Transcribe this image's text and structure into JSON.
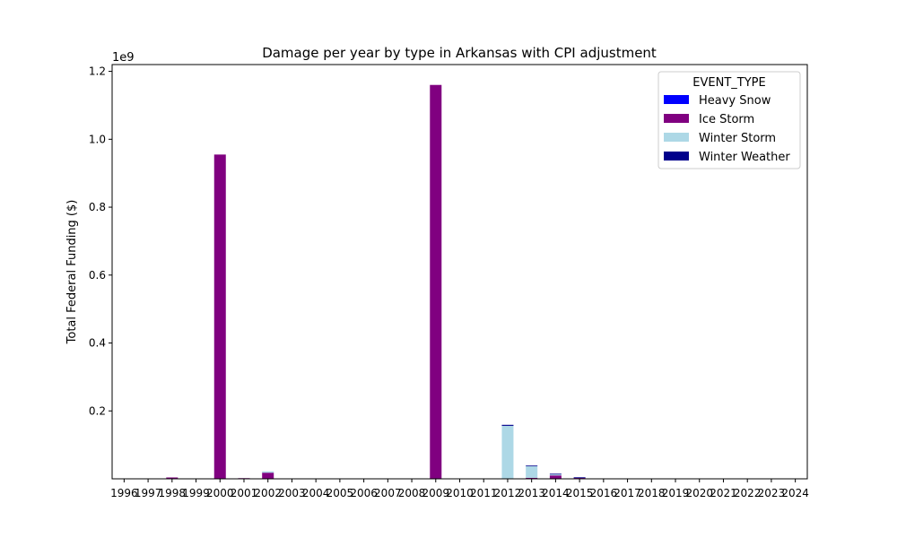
{
  "chart_data": {
    "type": "bar",
    "stacked": true,
    "title": "Damage per year by type in Arkansas with CPI adjustment",
    "xlabel": "",
    "ylabel": "Total Federal Funding ($)",
    "y_scale_label": "1e9",
    "ylim": [
      0,
      1220000000
    ],
    "y_ticks": [
      0.2,
      0.4,
      0.6,
      0.8,
      1.0,
      1.2
    ],
    "y_tick_multiplier": 1000000000,
    "grid": false,
    "legend_position": "top-right",
    "legend_title": "EVENT_TYPE",
    "categories": [
      "1996",
      "1997",
      "1998",
      "1999",
      "2000",
      "2001",
      "2002",
      "2003",
      "2004",
      "2005",
      "2006",
      "2007",
      "2008",
      "2009",
      "2010",
      "2011",
      "2012",
      "2013",
      "2014",
      "2015",
      "2016",
      "2017",
      "2018",
      "2019",
      "2020",
      "2021",
      "2022",
      "2023",
      "2024"
    ],
    "series": [
      {
        "name": "Heavy Snow",
        "color": "#0000ff",
        "values": [
          0,
          0,
          0,
          0,
          0,
          0,
          0,
          0,
          0,
          0,
          0,
          0,
          0,
          0,
          0,
          0,
          0,
          0,
          0,
          0,
          0,
          0,
          0,
          0,
          0,
          0,
          0,
          0,
          0
        ]
      },
      {
        "name": "Ice Storm",
        "color": "#800080",
        "values": [
          0,
          0,
          4000000,
          0,
          955000000,
          2000000,
          18000000,
          0,
          0,
          0,
          0,
          0,
          0,
          1160000000,
          0,
          0,
          0,
          3000000,
          10000000,
          3000000,
          0,
          0,
          0,
          0,
          0,
          0,
          0,
          0,
          0
        ]
      },
      {
        "name": "Winter Storm",
        "color": "#add8e6",
        "values": [
          0,
          0,
          0,
          0,
          0,
          0,
          4000000,
          0,
          0,
          0,
          0,
          0,
          0,
          0,
          0,
          0,
          156000000,
          34000000,
          3000000,
          0,
          0,
          0,
          0,
          0,
          0,
          0,
          0,
          0,
          0
        ]
      },
      {
        "name": "Winter Weather",
        "color": "#00008b",
        "values": [
          0,
          0,
          0,
          0,
          0,
          0,
          0,
          0,
          0,
          0,
          0,
          0,
          0,
          0,
          0,
          0,
          3000000,
          2000000,
          2000000,
          1500000,
          0,
          0,
          0,
          0,
          0,
          0,
          0,
          0,
          0
        ]
      }
    ]
  }
}
